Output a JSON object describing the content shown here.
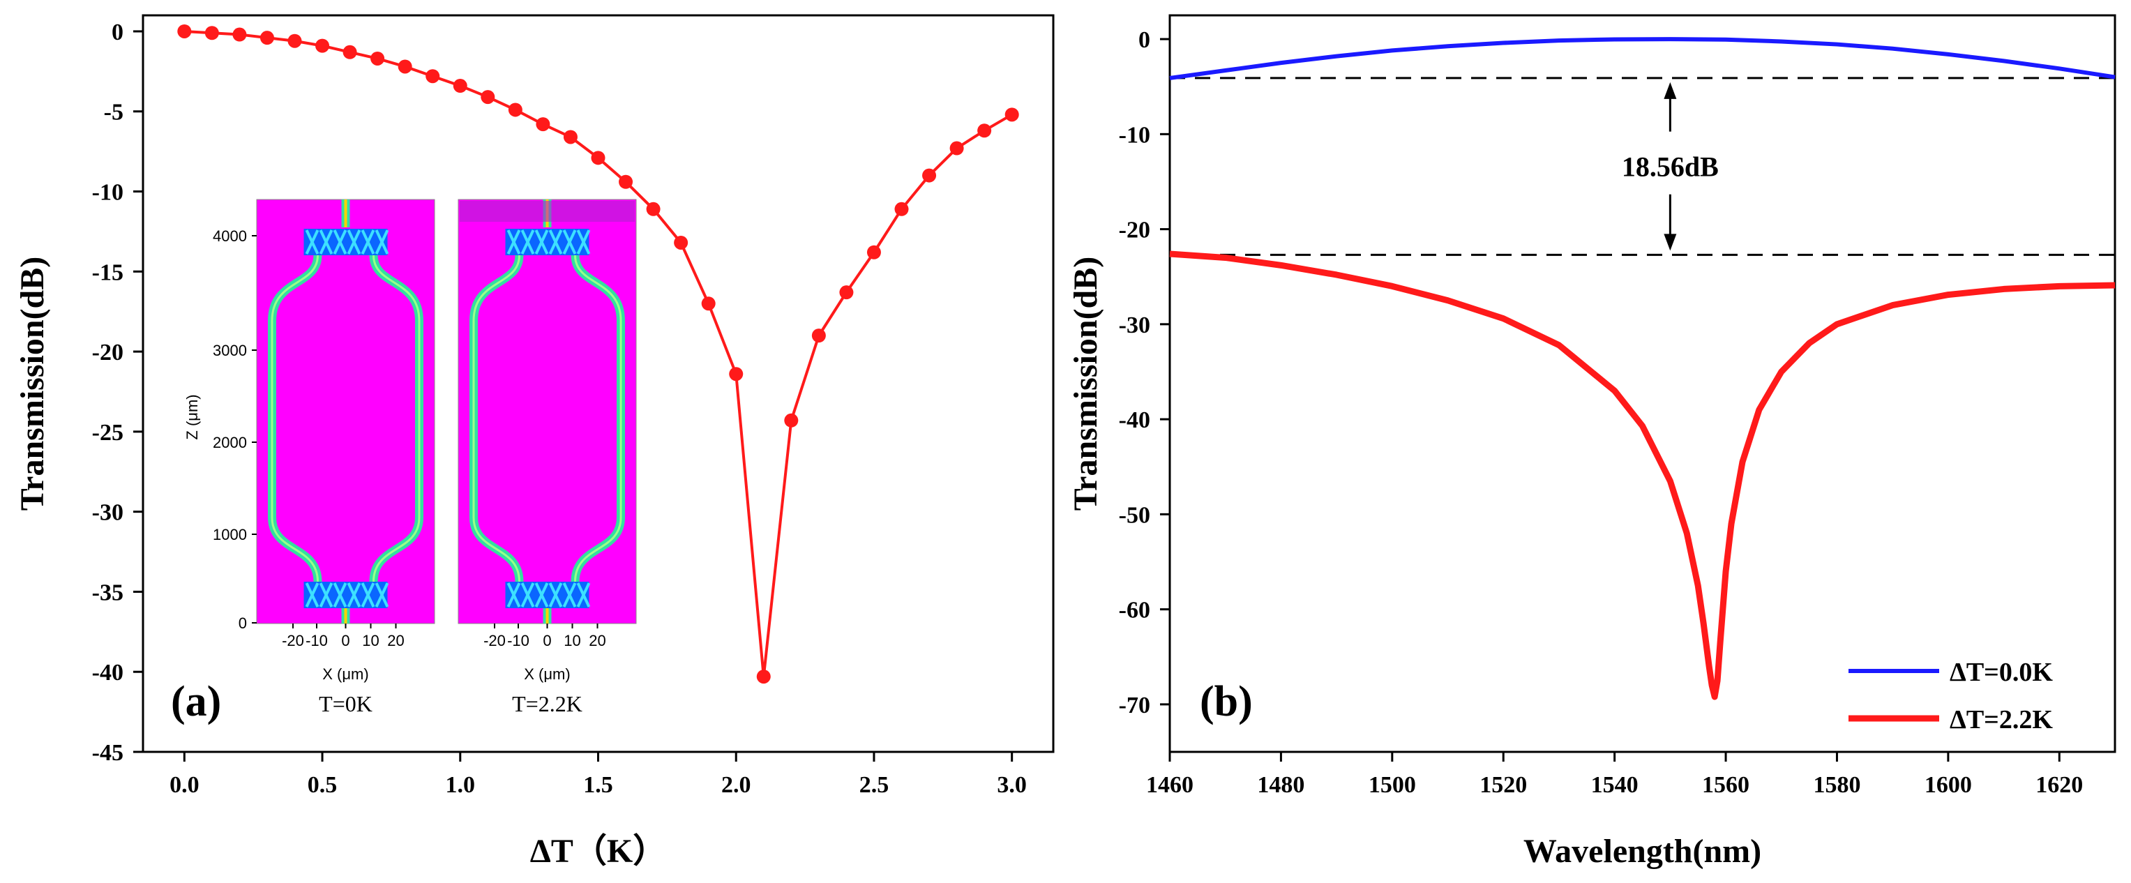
{
  "chart_data": [
    {
      "id": "a",
      "type": "line",
      "panel_label": "(a)",
      "xlabel": "ΔT（K）",
      "ylabel": "Transmission(dB)",
      "xlim": [
        -0.15,
        3.15
      ],
      "ylim": [
        -45,
        1
      ],
      "xticks": [
        0.0,
        0.5,
        1.0,
        1.5,
        2.0,
        2.5,
        3.0
      ],
      "xticklabels": [
        "0.0",
        "0.5",
        "1.0",
        "1.5",
        "2.0",
        "2.5",
        "3.0"
      ],
      "yticks": [
        0,
        -5,
        -10,
        -15,
        -20,
        -25,
        -30,
        -35,
        -40,
        -45
      ],
      "yticklabels": [
        "0",
        "-5",
        "-10",
        "-15",
        "-20",
        "-25",
        "-30",
        "-35",
        "-40",
        "-45"
      ],
      "series": [
        {
          "name": "Transmission",
          "color": "#ff1a1a",
          "marker": "circle",
          "x": [
            0.0,
            0.1,
            0.2,
            0.3,
            0.4,
            0.5,
            0.6,
            0.7,
            0.8,
            0.9,
            1.0,
            1.1,
            1.2,
            1.3,
            1.4,
            1.5,
            1.6,
            1.7,
            1.8,
            1.9,
            2.0,
            2.1,
            2.2,
            2.3,
            2.4,
            2.5,
            2.6,
            2.7,
            2.8,
            2.9,
            3.0
          ],
          "y": [
            0.0,
            -0.1,
            -0.2,
            -0.4,
            -0.6,
            -0.9,
            -1.3,
            -1.7,
            -2.2,
            -2.8,
            -3.4,
            -4.1,
            -4.9,
            -5.8,
            -6.6,
            -7.9,
            -9.4,
            -11.1,
            -13.2,
            -17.0,
            -21.4,
            -40.3,
            -24.3,
            -19.0,
            -16.3,
            -13.8,
            -11.1,
            -9.0,
            -7.3,
            -6.2,
            -5.2
          ]
        }
      ],
      "inset": {
        "panels": [
          {
            "caption": "T=0K"
          },
          {
            "caption": "T=2.2K"
          }
        ],
        "ylabel": "Z (μm)",
        "xlabel": "X (μm)",
        "yticklabels": [
          "0",
          "1000",
          "2000",
          "3000",
          "4000"
        ],
        "xticklabels": [
          "-20",
          "-10",
          "0",
          "10",
          "20"
        ],
        "background_color": "#ff00ff",
        "waveguide_color": "#33e0a0"
      }
    },
    {
      "id": "b",
      "type": "line",
      "panel_label": "(b)",
      "xlabel": "Wavelength(nm)",
      "ylabel": "Transmission(dB)",
      "xlim": [
        1460,
        1630
      ],
      "ylim": [
        -75,
        2.5
      ],
      "xticks": [
        1460,
        1480,
        1500,
        1520,
        1540,
        1560,
        1580,
        1600,
        1620
      ],
      "xticklabels": [
        "1460",
        "1480",
        "1500",
        "1520",
        "1540",
        "1560",
        "1580",
        "1600",
        "1620"
      ],
      "yticks": [
        0,
        -10,
        -20,
        -30,
        -40,
        -50,
        -60,
        -70
      ],
      "yticklabels": [
        "0",
        "-10",
        "-20",
        "-30",
        "-40",
        "-50",
        "-60",
        "-70"
      ],
      "legend_position": "bottom-right",
      "series": [
        {
          "name": "ΔT=0.0K",
          "color": "#1a1aff",
          "x": [
            1460,
            1470,
            1480,
            1490,
            1500,
            1510,
            1520,
            1530,
            1540,
            1550,
            1560,
            1570,
            1580,
            1590,
            1600,
            1610,
            1620,
            1630
          ],
          "y": [
            -4.1,
            -3.3,
            -2.5,
            -1.8,
            -1.2,
            -0.75,
            -0.4,
            -0.15,
            -0.03,
            0.0,
            -0.05,
            -0.25,
            -0.55,
            -1.0,
            -1.6,
            -2.3,
            -3.1,
            -4.0
          ]
        },
        {
          "name": "ΔT=2.2K",
          "color": "#ff1a1a",
          "x": [
            1460,
            1470,
            1480,
            1490,
            1500,
            1510,
            1520,
            1530,
            1540,
            1545,
            1550,
            1553,
            1555,
            1556,
            1557,
            1557.5,
            1558,
            1558.5,
            1559,
            1560,
            1561,
            1563,
            1566,
            1570,
            1575,
            1580,
            1590,
            1600,
            1610,
            1620,
            1630
          ],
          "y": [
            -22.6,
            -23.0,
            -23.8,
            -24.8,
            -26.0,
            -27.5,
            -29.4,
            -32.2,
            -37.0,
            -40.7,
            -46.5,
            -52.0,
            -57.5,
            -61.5,
            -66.0,
            -68.0,
            -69.2,
            -67.5,
            -63.5,
            -56.0,
            -51.0,
            -44.5,
            -39.0,
            -35.0,
            -32.0,
            -30.0,
            -28.0,
            -26.9,
            -26.3,
            -26.0,
            -25.9
          ]
        }
      ],
      "reference_lines": [
        -4.1,
        -22.7
      ],
      "annotation": {
        "text": "18.56dB",
        "x": 1550
      }
    }
  ]
}
